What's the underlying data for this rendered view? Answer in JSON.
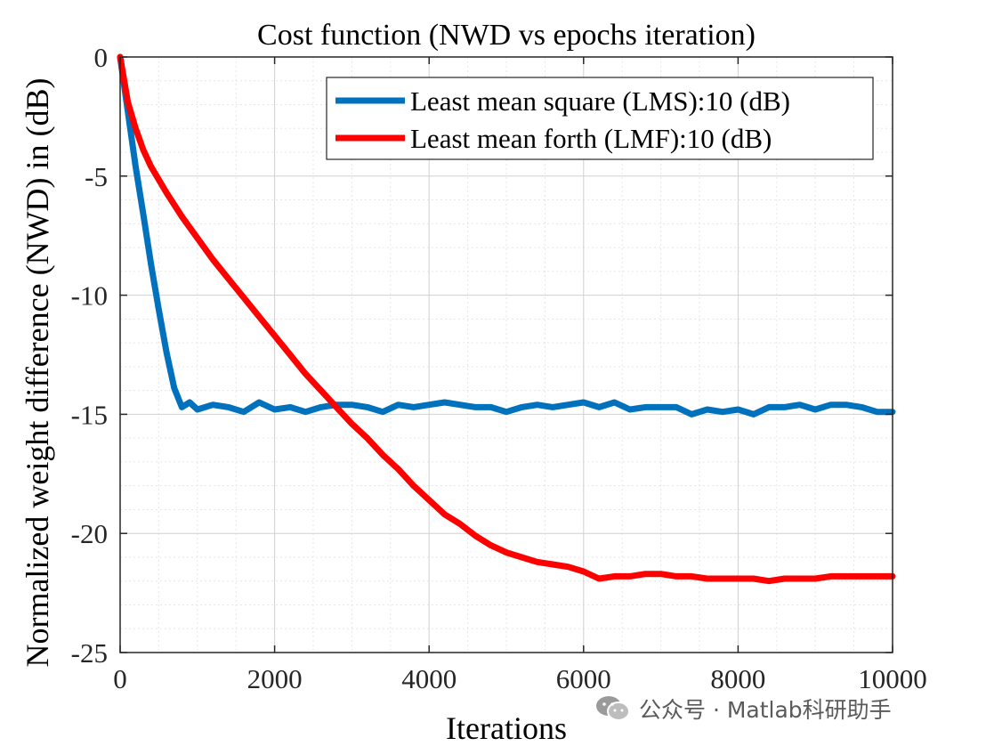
{
  "chart_data": {
    "type": "line",
    "title": "Cost function (NWD vs epochs iteration)",
    "xlabel": "Iterations",
    "ylabel": "Normalized weight difference (NWD) in (dB)",
    "xlim": [
      0,
      10000
    ],
    "ylim": [
      -25,
      0
    ],
    "xticks": [
      0,
      2000,
      4000,
      6000,
      8000,
      10000
    ],
    "yticks": [
      0,
      -5,
      -10,
      -15,
      -20,
      -25
    ],
    "grid": true,
    "minor_grid": true,
    "legend_position": "top-right",
    "series": [
      {
        "name": "Least mean square (LMS):10 (dB)",
        "color": "#0072BD",
        "x": [
          0,
          100,
          200,
          300,
          400,
          500,
          600,
          700,
          800,
          900,
          1000,
          1200,
          1400,
          1600,
          1800,
          2000,
          2200,
          2400,
          2600,
          2800,
          3000,
          3200,
          3400,
          3600,
          3800,
          4000,
          4200,
          4400,
          4600,
          4800,
          5000,
          5200,
          5400,
          5600,
          5800,
          6000,
          6200,
          6400,
          6600,
          6800,
          7000,
          7200,
          7400,
          7600,
          7800,
          8000,
          8200,
          8400,
          8600,
          8800,
          9000,
          9200,
          9400,
          9600,
          9800,
          10000
        ],
        "y": [
          0,
          -2.3,
          -4.6,
          -6.6,
          -8.7,
          -10.6,
          -12.4,
          -13.9,
          -14.7,
          -14.5,
          -14.8,
          -14.6,
          -14.7,
          -14.9,
          -14.5,
          -14.8,
          -14.7,
          -14.9,
          -14.7,
          -14.6,
          -14.6,
          -14.7,
          -14.9,
          -14.6,
          -14.7,
          -14.6,
          -14.5,
          -14.6,
          -14.7,
          -14.7,
          -14.9,
          -14.7,
          -14.6,
          -14.7,
          -14.6,
          -14.5,
          -14.7,
          -14.5,
          -14.8,
          -14.7,
          -14.7,
          -14.7,
          -15.0,
          -14.8,
          -14.9,
          -14.8,
          -15.0,
          -14.7,
          -14.7,
          -14.6,
          -14.8,
          -14.6,
          -14.6,
          -14.7,
          -14.9,
          -14.9
        ]
      },
      {
        "name": "Least mean forth (LMF):10 (dB)",
        "color": "#FF0000",
        "x": [
          0,
          100,
          200,
          300,
          400,
          600,
          800,
          1000,
          1200,
          1400,
          1600,
          1800,
          2000,
          2200,
          2400,
          2600,
          2800,
          3000,
          3200,
          3400,
          3600,
          3800,
          4000,
          4200,
          4400,
          4600,
          4800,
          5000,
          5200,
          5400,
          5600,
          5800,
          6000,
          6200,
          6400,
          6600,
          6800,
          7000,
          7200,
          7400,
          7600,
          7800,
          8000,
          8200,
          8400,
          8600,
          8800,
          9000,
          9200,
          9400,
          9600,
          9800,
          10000
        ],
        "y": [
          0,
          -1.9,
          -3.0,
          -3.9,
          -4.6,
          -5.7,
          -6.7,
          -7.6,
          -8.5,
          -9.3,
          -10.1,
          -10.9,
          -11.7,
          -12.5,
          -13.3,
          -14.0,
          -14.7,
          -15.4,
          -16.0,
          -16.7,
          -17.3,
          -18.0,
          -18.6,
          -19.2,
          -19.6,
          -20.1,
          -20.5,
          -20.8,
          -21.0,
          -21.2,
          -21.3,
          -21.4,
          -21.6,
          -21.9,
          -21.8,
          -21.8,
          -21.7,
          -21.7,
          -21.8,
          -21.8,
          -21.9,
          -21.9,
          -21.9,
          -21.9,
          -22.0,
          -21.9,
          -21.9,
          -21.9,
          -21.8,
          -21.8,
          -21.8,
          -21.8,
          -21.8
        ]
      }
    ]
  },
  "watermark": {
    "text": "公众号 · Matlab科研助手",
    "icon": "wechat-icon"
  }
}
